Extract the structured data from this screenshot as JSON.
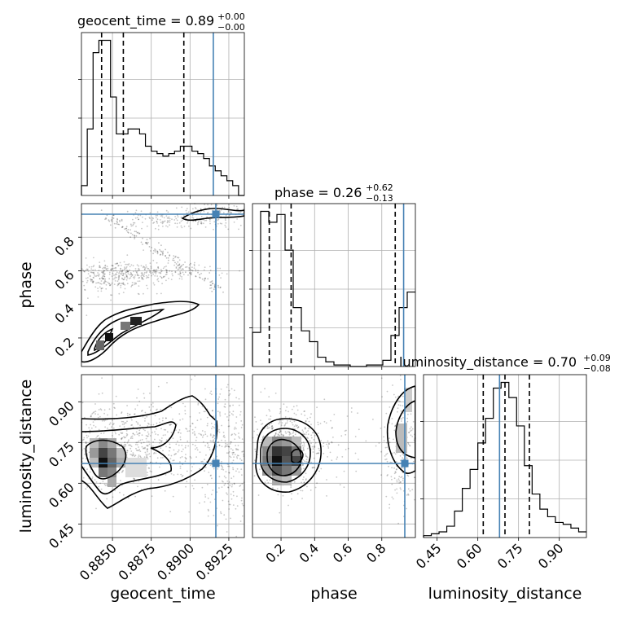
{
  "chart_data": {
    "type": "corner",
    "parameters": [
      "geocent_time",
      "phase",
      "luminosity_distance"
    ],
    "truths": {
      "geocent_time": 0.8915,
      "phase": 0.93,
      "luminosity_distance": 0.68
    },
    "ranges": {
      "geocent_time": [
        0.883,
        0.8935
      ],
      "phase": [
        0.03,
        1.0
      ],
      "luminosity_distance": [
        0.4,
        1.0
      ]
    },
    "ticks": {
      "geocent_time": [
        "0.8850",
        "0.8875",
        "0.8900",
        "0.8925"
      ],
      "phase": [
        "0.2",
        "0.4",
        "0.6",
        "0.8"
      ],
      "luminosity_distance": [
        "0.45",
        "0.60",
        "0.75",
        "0.90"
      ]
    },
    "tick_values": {
      "geocent_time": [
        0.885,
        0.8875,
        0.89,
        0.8925
      ],
      "phase": [
        0.2,
        0.4,
        0.6,
        0.8
      ],
      "luminosity_distance": [
        0.45,
        0.6,
        0.75,
        0.9
      ]
    },
    "titles": {
      "geocent_time": {
        "label": "geocent_time = 0.89",
        "plus": "+0.00",
        "minus": "−0.00"
      },
      "phase": {
        "label": "phase = 0.26",
        "plus": "+0.62",
        "minus": "−0.13"
      },
      "luminosity_distance": {
        "label": "luminosity_distance = 0.70",
        "plus": "+0.09",
        "minus": "−0.08"
      }
    },
    "quantiles": {
      "geocent_time": [
        0.8843,
        0.8857,
        0.8896
      ],
      "phase": [
        0.13,
        0.26,
        0.88
      ],
      "luminosity_distance": [
        0.62,
        0.7,
        0.79
      ]
    },
    "histograms": {
      "geocent_time": [
        4,
        27,
        58,
        63,
        63,
        40,
        25,
        25,
        27,
        27,
        25,
        20,
        18,
        17,
        16,
        17,
        18,
        20,
        20,
        18,
        17,
        15,
        12,
        10,
        8,
        6,
        4,
        0
      ],
      "phase": [
        22,
        100,
        93,
        98,
        75,
        38,
        23,
        16,
        6,
        3,
        1,
        1,
        0,
        0,
        1,
        1,
        4,
        20,
        38,
        48
      ],
      "luminosity_distance": [
        1,
        2,
        3,
        6,
        14,
        26,
        36,
        50,
        63,
        79,
        82,
        74,
        59,
        38,
        23,
        15,
        11,
        8,
        7,
        5,
        3
      ]
    },
    "grid": true
  }
}
